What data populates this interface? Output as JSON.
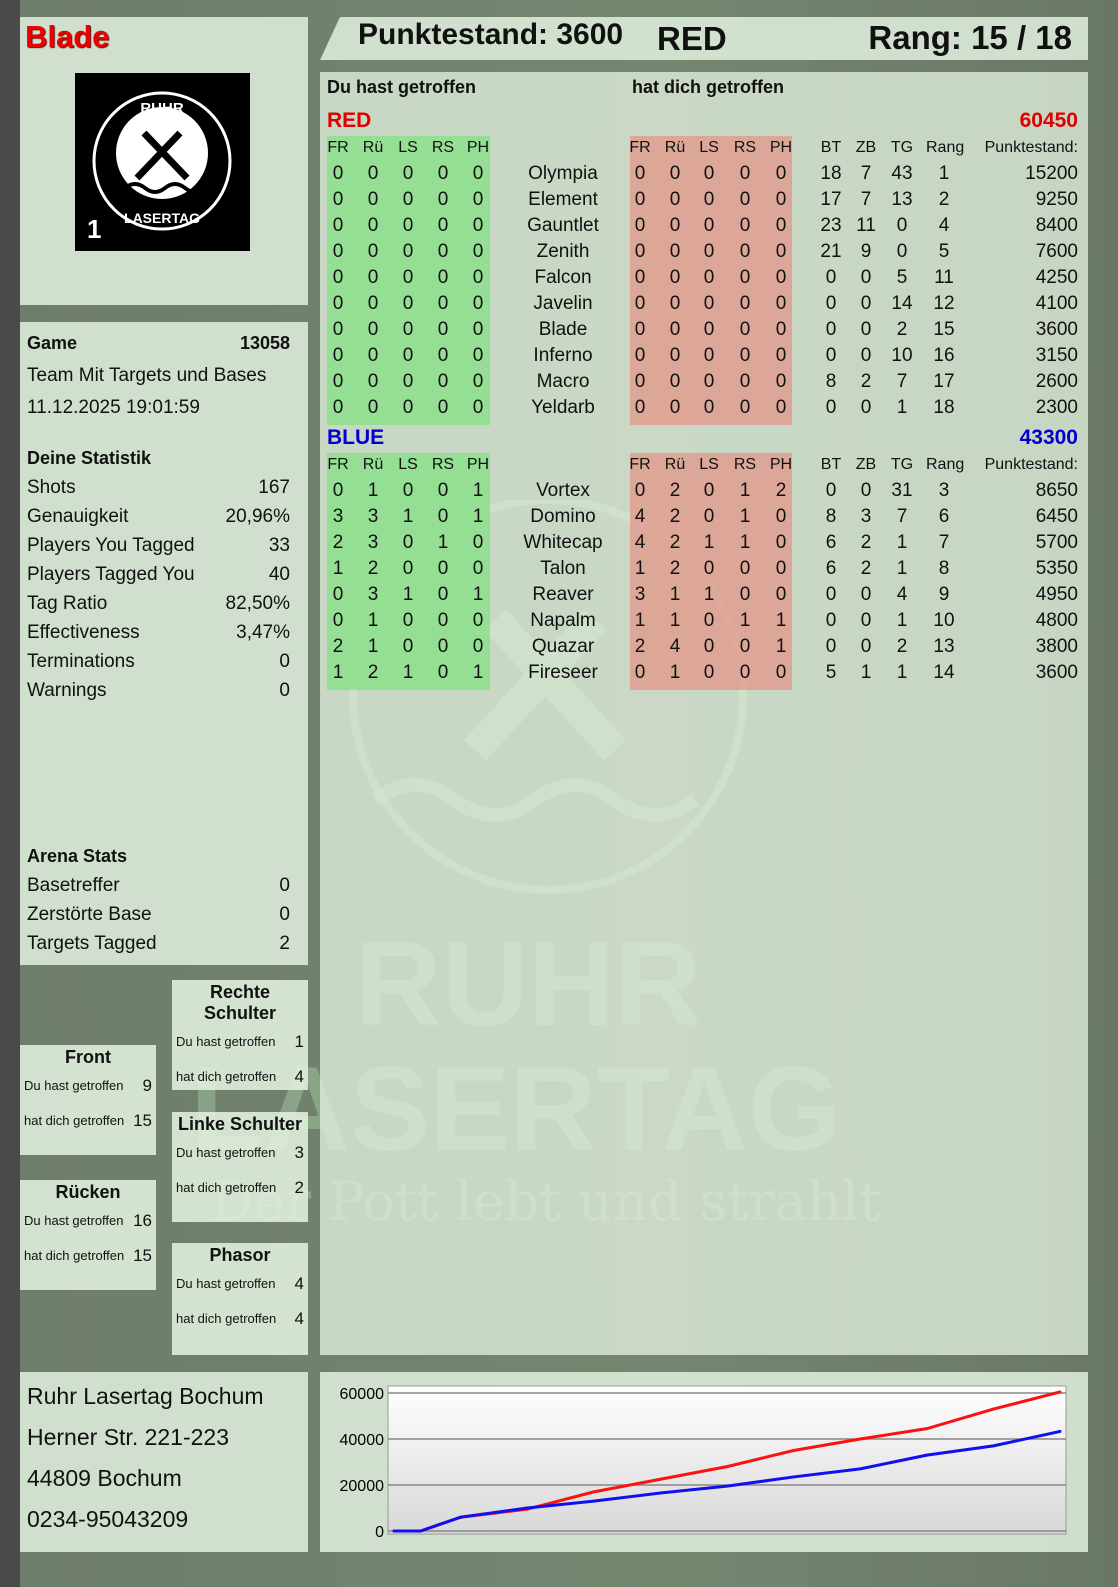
{
  "player": {
    "name": "Blade",
    "score_label": "Punktestand: 3600",
    "team": "RED",
    "rank_label": "Rang: 15 / 18"
  },
  "logo": {
    "text_top": "RUHR",
    "text_bottom": "LASERTAG",
    "badge": "1"
  },
  "watermark": {
    "line1": "RUHR",
    "line2": "LASERTAG",
    "slogan": "Der Pott lebt und strahlt"
  },
  "game": {
    "label": "Game",
    "number": "13058",
    "mode": "Team Mit Targets und Bases",
    "datetime": "11.12.2025 19:01:59"
  },
  "stats": {
    "title": "Deine Statistik",
    "items": [
      {
        "label": "Shots",
        "value": "167"
      },
      {
        "label": "Genauigkeit",
        "value": "20,96%"
      },
      {
        "label": "Players You Tagged",
        "value": "33"
      },
      {
        "label": "Players Tagged You",
        "value": "40"
      },
      {
        "label": "Tag Ratio",
        "value": "82,50%"
      },
      {
        "label": "Effectiveness",
        "value": "3,47%"
      },
      {
        "label": "Terminations",
        "value": "0"
      },
      {
        "label": "Warnings",
        "value": "0"
      }
    ]
  },
  "arena": {
    "title": "Arena Stats",
    "items": [
      {
        "label": "Basetreffer",
        "value": "0"
      },
      {
        "label": "Zerstörte Base",
        "value": "0"
      },
      {
        "label": "Targets Tagged",
        "value": "2"
      }
    ]
  },
  "hit_zones": [
    {
      "title": "Rechte Schulter",
      "you_hit_label": "Du hast getroffen",
      "you_hit": "1",
      "hit_you_label": "hat dich getroffen",
      "hit_you": "4"
    },
    {
      "title": "Front",
      "you_hit_label": "Du hast getroffen",
      "you_hit": "9",
      "hit_you_label": "hat dich getroffen",
      "hit_you": "15"
    },
    {
      "title": "Linke Schulter",
      "you_hit_label": "Du hast getroffen",
      "you_hit": "3",
      "hit_you_label": "hat dich getroffen",
      "hit_you": "2"
    },
    {
      "title": "Rücken",
      "you_hit_label": "Du hast getroffen",
      "you_hit": "16",
      "hit_you_label": "hat dich getroffen",
      "hit_you": "15"
    },
    {
      "title": "Phasor",
      "you_hit_label": "Du hast getroffen",
      "you_hit": "4",
      "hit_you_label": "hat dich getroffen",
      "hit_you": "4"
    }
  ],
  "address": [
    "Ruhr Lasertag Bochum",
    "Herner Str. 221-223",
    "44809 Bochum",
    "0234-95043209"
  ],
  "table": {
    "you_hit_label": "Du hast getroffen",
    "hit_you_label": "hat dich getroffen",
    "zone_headers": [
      "FR",
      "Rü",
      "LS",
      "RS",
      "PH"
    ],
    "stat_headers": [
      "BT",
      "ZB",
      "TG",
      "Rang",
      "Punktestand:"
    ],
    "teams": [
      {
        "name": "RED",
        "total": "60450",
        "color": "#e00000",
        "players": [
          {
            "name": "Olympia",
            "hit": [
              0,
              0,
              0,
              0,
              0
            ],
            "got": [
              0,
              0,
              0,
              0,
              0
            ],
            "bt": 18,
            "zb": 7,
            "tg": 43,
            "rang": 1,
            "score": 15200
          },
          {
            "name": "Element",
            "hit": [
              0,
              0,
              0,
              0,
              0
            ],
            "got": [
              0,
              0,
              0,
              0,
              0
            ],
            "bt": 17,
            "zb": 7,
            "tg": 13,
            "rang": 2,
            "score": 9250
          },
          {
            "name": "Gauntlet",
            "hit": [
              0,
              0,
              0,
              0,
              0
            ],
            "got": [
              0,
              0,
              0,
              0,
              0
            ],
            "bt": 23,
            "zb": 11,
            "tg": 0,
            "rang": 4,
            "score": 8400
          },
          {
            "name": "Zenith",
            "hit": [
              0,
              0,
              0,
              0,
              0
            ],
            "got": [
              0,
              0,
              0,
              0,
              0
            ],
            "bt": 21,
            "zb": 9,
            "tg": 0,
            "rang": 5,
            "score": 7600
          },
          {
            "name": "Falcon",
            "hit": [
              0,
              0,
              0,
              0,
              0
            ],
            "got": [
              0,
              0,
              0,
              0,
              0
            ],
            "bt": 0,
            "zb": 0,
            "tg": 5,
            "rang": 11,
            "score": 4250
          },
          {
            "name": "Javelin",
            "hit": [
              0,
              0,
              0,
              0,
              0
            ],
            "got": [
              0,
              0,
              0,
              0,
              0
            ],
            "bt": 0,
            "zb": 0,
            "tg": 14,
            "rang": 12,
            "score": 4100
          },
          {
            "name": "Blade",
            "hit": [
              0,
              0,
              0,
              0,
              0
            ],
            "got": [
              0,
              0,
              0,
              0,
              0
            ],
            "bt": 0,
            "zb": 0,
            "tg": 2,
            "rang": 15,
            "score": 3600
          },
          {
            "name": "Inferno",
            "hit": [
              0,
              0,
              0,
              0,
              0
            ],
            "got": [
              0,
              0,
              0,
              0,
              0
            ],
            "bt": 0,
            "zb": 0,
            "tg": 10,
            "rang": 16,
            "score": 3150
          },
          {
            "name": "Macro",
            "hit": [
              0,
              0,
              0,
              0,
              0
            ],
            "got": [
              0,
              0,
              0,
              0,
              0
            ],
            "bt": 8,
            "zb": 2,
            "tg": 7,
            "rang": 17,
            "score": 2600
          },
          {
            "name": "Yeldarb",
            "hit": [
              0,
              0,
              0,
              0,
              0
            ],
            "got": [
              0,
              0,
              0,
              0,
              0
            ],
            "bt": 0,
            "zb": 0,
            "tg": 1,
            "rang": 18,
            "score": 2300
          }
        ]
      },
      {
        "name": "BLUE",
        "total": "43300",
        "color": "#0000d0",
        "players": [
          {
            "name": "Vortex",
            "hit": [
              0,
              1,
              0,
              0,
              1
            ],
            "got": [
              0,
              2,
              0,
              1,
              2
            ],
            "bt": 0,
            "zb": 0,
            "tg": 31,
            "rang": 3,
            "score": 8650
          },
          {
            "name": "Domino",
            "hit": [
              3,
              3,
              1,
              0,
              1
            ],
            "got": [
              4,
              2,
              0,
              1,
              0
            ],
            "bt": 8,
            "zb": 3,
            "tg": 7,
            "rang": 6,
            "score": 6450
          },
          {
            "name": "Whitecap",
            "hit": [
              2,
              3,
              0,
              1,
              0
            ],
            "got": [
              4,
              2,
              1,
              1,
              0
            ],
            "bt": 6,
            "zb": 2,
            "tg": 1,
            "rang": 7,
            "score": 5700
          },
          {
            "name": "Talon",
            "hit": [
              1,
              2,
              0,
              0,
              0
            ],
            "got": [
              1,
              2,
              0,
              0,
              0
            ],
            "bt": 6,
            "zb": 2,
            "tg": 1,
            "rang": 8,
            "score": 5350
          },
          {
            "name": "Reaver",
            "hit": [
              0,
              3,
              1,
              0,
              1
            ],
            "got": [
              3,
              1,
              1,
              0,
              0
            ],
            "bt": 0,
            "zb": 0,
            "tg": 4,
            "rang": 9,
            "score": 4950
          },
          {
            "name": "Napalm",
            "hit": [
              0,
              1,
              0,
              0,
              0
            ],
            "got": [
              1,
              1,
              0,
              1,
              1
            ],
            "bt": 0,
            "zb": 0,
            "tg": 1,
            "rang": 10,
            "score": 4800
          },
          {
            "name": "Quazar",
            "hit": [
              2,
              1,
              0,
              0,
              0
            ],
            "got": [
              2,
              4,
              0,
              0,
              1
            ],
            "bt": 0,
            "zb": 0,
            "tg": 2,
            "rang": 13,
            "score": 3800
          },
          {
            "name": "Fireseer",
            "hit": [
              1,
              2,
              1,
              0,
              1
            ],
            "got": [
              0,
              1,
              0,
              0,
              0
            ],
            "bt": 5,
            "zb": 1,
            "tg": 1,
            "rang": 14,
            "score": 3600
          }
        ]
      }
    ]
  },
  "chart_data": {
    "type": "line",
    "ylim": [
      0,
      60000
    ],
    "yticks": [
      "0",
      "20000",
      "40000",
      "60000"
    ],
    "grid": true,
    "x": [
      0,
      4,
      10,
      20,
      30,
      40,
      50,
      60,
      70,
      80,
      90,
      100
    ],
    "series": [
      {
        "color": "#ff1010",
        "values": [
          0,
          0,
          6000,
          9500,
          17000,
          22500,
          28000,
          35000,
          40000,
          44500,
          53000,
          60450
        ]
      },
      {
        "color": "#1010ee",
        "values": [
          0,
          0,
          6000,
          10000,
          13000,
          16500,
          19500,
          23500,
          27000,
          33000,
          37000,
          43300
        ]
      }
    ]
  }
}
